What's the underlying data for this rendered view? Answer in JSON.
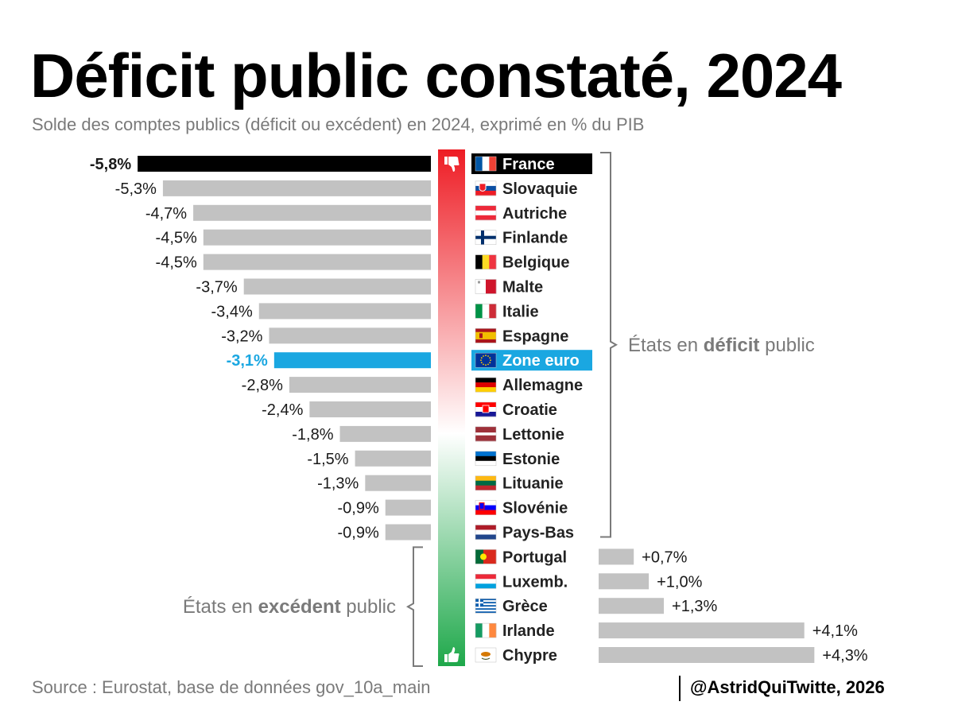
{
  "header": {
    "title": "Déficit public constaté, 2024",
    "subtitle": "Solde des comptes publics (déficit ou excédent) en 2024, exprimé en % du PIB"
  },
  "footer": {
    "source": "Source : Eurostat, base de données gov_10a_main",
    "credit": "@AstridQuiTwitte, 2026"
  },
  "annotations": {
    "deficit": {
      "pre": "États en ",
      "bold": "déficit",
      "post": " public"
    },
    "surplus": {
      "pre": "États en ",
      "bold": "excédent",
      "post": " public"
    }
  },
  "icons": {
    "top": "thumbs-down-icon",
    "bottom": "thumbs-up-icon"
  },
  "colors": {
    "bar_default": "#c2c2c2",
    "bar_france": "#000000",
    "bar_euro": "#1aa7e1",
    "gradient_top": "#ee1c24",
    "gradient_bottom": "#1ea84a"
  },
  "chart_data": {
    "type": "bar",
    "orientation": "horizontal",
    "unit": "% du PIB",
    "categories": [
      "France",
      "Slovaquie",
      "Autriche",
      "Finlande",
      "Belgique",
      "Malte",
      "Italie",
      "Espagne",
      "Zone euro",
      "Allemagne",
      "Croatie",
      "Lettonie",
      "Estonie",
      "Lituanie",
      "Slovénie",
      "Pays-Bas",
      "Portugal",
      "Luxemb.",
      "Grèce",
      "Irlande",
      "Chypre"
    ],
    "values": [
      -5.8,
      -5.3,
      -4.7,
      -4.5,
      -4.5,
      -3.7,
      -3.4,
      -3.2,
      -3.1,
      -2.8,
      -2.4,
      -1.8,
      -1.5,
      -1.3,
      -0.9,
      -0.9,
      0.7,
      1.0,
      1.3,
      4.1,
      4.3
    ],
    "labels": [
      "-5,8%",
      "-5,3%",
      "-4,7%",
      "-4,5%",
      "-4,5%",
      "-3,7%",
      "-3,4%",
      "-3,2%",
      "-3,1%",
      "-2,8%",
      "-2,4%",
      "-1,8%",
      "-1,5%",
      "-1,3%",
      "-0,9%",
      "-0,9%",
      "+0,7%",
      "+1,0%",
      "+1,3%",
      "+4,1%",
      "+4,3%"
    ],
    "highlight": {
      "France": "black",
      "Zone euro": "blue"
    },
    "flags": [
      "fr",
      "sk",
      "at",
      "fi",
      "be",
      "mt",
      "it",
      "es",
      "eu",
      "de",
      "hr",
      "lv",
      "ee",
      "lt",
      "si",
      "nl",
      "pt",
      "lu",
      "gr",
      "ie",
      "cy"
    ]
  }
}
